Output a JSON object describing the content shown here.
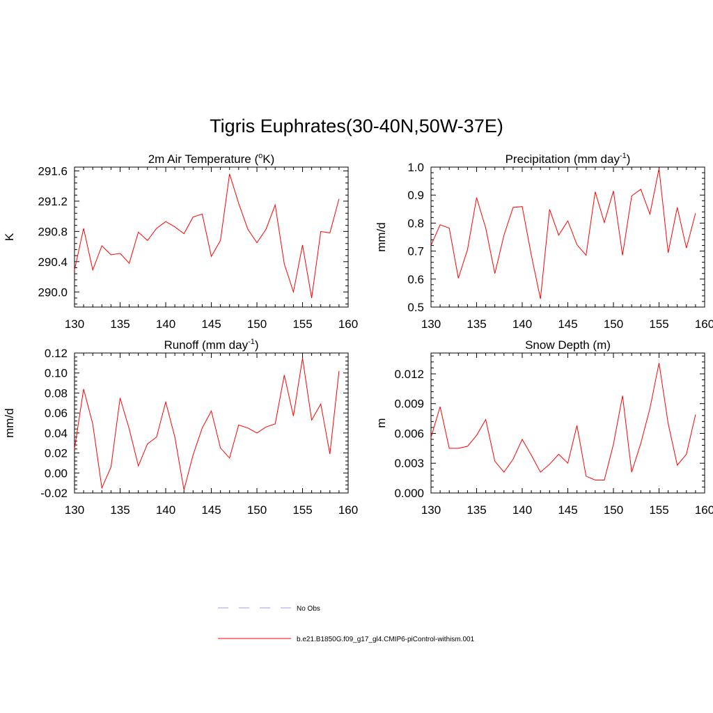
{
  "figure": {
    "title": "Tigris Euphrates(30-40N,50W-37E)"
  },
  "chart_data": [
    {
      "type": "line",
      "title": "2m Air Temperature (°K)",
      "title_parts": {
        "pre": "2m Air Temperature (",
        "sup": "o",
        "post": "K)"
      },
      "xlabel": "",
      "ylabel": "K",
      "xlim": [
        130,
        160
      ],
      "ylim": [
        289.8,
        291.65
      ],
      "xticks": [
        130,
        135,
        140,
        145,
        150,
        155,
        160
      ],
      "yticks": [
        290.0,
        290.4,
        290.8,
        291.2,
        291.6
      ],
      "ytick_labels": [
        "290.0",
        "290.4",
        "290.8",
        "291.2",
        "291.6"
      ],
      "x": [
        130,
        131,
        132,
        133,
        134,
        135,
        136,
        137,
        138,
        139,
        140,
        141,
        142,
        143,
        144,
        145,
        146,
        147,
        148,
        149,
        150,
        151,
        152,
        153,
        154,
        155,
        156,
        157,
        158,
        159
      ],
      "series": [
        {
          "values": [
            290.29,
            290.84,
            290.29,
            290.61,
            290.49,
            290.51,
            290.38,
            290.79,
            290.68,
            290.84,
            290.93,
            290.86,
            290.77,
            290.99,
            291.03,
            290.47,
            290.68,
            291.56,
            291.17,
            290.83,
            290.65,
            290.83,
            291.15,
            290.37,
            290.0,
            290.62,
            289.92,
            290.8,
            290.78,
            291.23
          ]
        }
      ]
    },
    {
      "type": "line",
      "title": "Precipitation (mm day-1)",
      "title_parts": {
        "pre": "Precipitation (mm day",
        "sup": "-1",
        "post": ")"
      },
      "xlabel": "",
      "ylabel": "mm/d",
      "xlim": [
        130,
        160
      ],
      "ylim": [
        0.5,
        1.0
      ],
      "xticks": [
        130,
        135,
        140,
        145,
        150,
        155,
        160
      ],
      "yticks": [
        0.5,
        0.6,
        0.7,
        0.8,
        0.9,
        1.0
      ],
      "ytick_labels": [
        "0.5",
        "0.6",
        "0.7",
        "0.8",
        "0.9",
        "1.0"
      ],
      "x": [
        130,
        131,
        132,
        133,
        134,
        135,
        136,
        137,
        138,
        139,
        140,
        141,
        142,
        143,
        144,
        145,
        146,
        147,
        148,
        149,
        150,
        151,
        152,
        153,
        154,
        155,
        156,
        157,
        158,
        159
      ],
      "series": [
        {
          "values": [
            0.72,
            0.794,
            0.782,
            0.603,
            0.705,
            0.891,
            0.782,
            0.62,
            0.757,
            0.856,
            0.859,
            0.685,
            0.529,
            0.849,
            0.757,
            0.808,
            0.723,
            0.685,
            0.912,
            0.802,
            0.915,
            0.685,
            0.897,
            0.921,
            0.832,
            0.995,
            0.694,
            0.856,
            0.711,
            0.835
          ]
        }
      ]
    },
    {
      "type": "line",
      "title": "Runoff (mm day-1)",
      "title_parts": {
        "pre": "Runoff (mm day",
        "sup": "-1",
        "post": ")"
      },
      "xlabel": "",
      "ylabel": "mm/d",
      "xlim": [
        130,
        160
      ],
      "ylim": [
        -0.02,
        0.12
      ],
      "xticks": [
        130,
        135,
        140,
        145,
        150,
        155,
        160
      ],
      "yticks": [
        -0.02,
        0.0,
        0.02,
        0.04,
        0.06,
        0.08,
        0.1,
        0.12
      ],
      "ytick_labels": [
        "-0.02",
        "0.00",
        "0.02",
        "0.04",
        "0.06",
        "0.08",
        "0.10",
        "0.12"
      ],
      "x": [
        130,
        131,
        132,
        133,
        134,
        135,
        136,
        137,
        138,
        139,
        140,
        141,
        142,
        143,
        144,
        145,
        146,
        147,
        148,
        149,
        150,
        151,
        152,
        153,
        154,
        155,
        156,
        157,
        158,
        159
      ],
      "series": [
        {
          "values": [
            0.024,
            0.084,
            0.049,
            -0.015,
            0.006,
            0.075,
            0.044,
            0.007,
            0.029,
            0.036,
            0.071,
            0.036,
            -0.017,
            0.018,
            0.045,
            0.062,
            0.025,
            0.015,
            0.048,
            0.045,
            0.04,
            0.046,
            0.049,
            0.098,
            0.057,
            0.115,
            0.053,
            0.069,
            0.019,
            0.102
          ]
        }
      ]
    },
    {
      "type": "line",
      "title": "Snow Depth (m)",
      "title_parts": {
        "pre": "Snow Depth (m)",
        "sup": "",
        "post": ""
      },
      "xlabel": "",
      "ylabel": "m",
      "xlim": [
        130,
        160
      ],
      "ylim": [
        0.0,
        0.0141
      ],
      "xticks": [
        130,
        135,
        140,
        145,
        150,
        155,
        160
      ],
      "yticks": [
        0.0,
        0.003,
        0.006,
        0.009,
        0.012
      ],
      "ytick_labels": [
        "0.000",
        "0.003",
        "0.006",
        "0.009",
        "0.012"
      ],
      "x": [
        130,
        131,
        132,
        133,
        134,
        135,
        136,
        137,
        138,
        139,
        140,
        141,
        142,
        143,
        144,
        145,
        146,
        147,
        148,
        149,
        150,
        151,
        152,
        153,
        154,
        155,
        156,
        157,
        158,
        159
      ],
      "series": [
        {
          "values": [
            0.0056,
            0.0087,
            0.0045,
            0.0045,
            0.0047,
            0.0058,
            0.0074,
            0.0032,
            0.0021,
            0.0034,
            0.0054,
            0.0038,
            0.0021,
            0.0029,
            0.0039,
            0.003,
            0.0068,
            0.0017,
            0.0013,
            0.0013,
            0.0049,
            0.0098,
            0.0021,
            0.005,
            0.0085,
            0.0131,
            0.007,
            0.0028,
            0.0039,
            0.0079
          ]
        }
      ]
    }
  ],
  "legend": {
    "entries": [
      {
        "label": "No Obs",
        "color": "#9999ff",
        "style": "dashed"
      },
      {
        "label": "b.e21.B1850G.f09_g17_gl4.CMIP6-piControl-withism.001",
        "color": "#ff0000",
        "style": "solid"
      }
    ]
  },
  "colors": {
    "line": "#ff0000",
    "axis": "#000000"
  }
}
